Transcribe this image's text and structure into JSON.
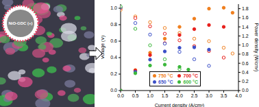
{
  "image": {
    "inset_label": "NiO-GDC (+)"
  },
  "chart_data": {
    "type": "scatter",
    "xlabel": "Current density (A/cm²)",
    "ylabel": "Voltage (V)",
    "y2label": "Power density (W/cm²)",
    "xlim": [
      0,
      4
    ],
    "xticks": [
      {
        "value": 0,
        "label": "0.0"
      },
      {
        "value": 0.5,
        "label": "0.5"
      },
      {
        "value": 1,
        "label": "1.0"
      },
      {
        "value": 1.5,
        "label": "1.5"
      },
      {
        "value": 2,
        "label": "2.0"
      },
      {
        "value": 2.5,
        "label": "2.5"
      },
      {
        "value": 3,
        "label": "3.0"
      },
      {
        "value": 3.5,
        "label": "3.5"
      },
      {
        "value": 4,
        "label": "4.0"
      }
    ],
    "ylim": [
      0,
      1.05
    ],
    "yticks": [
      {
        "value": 0,
        "label": "0.0"
      },
      {
        "value": 0.2,
        "label": "0.2"
      },
      {
        "value": 0.4,
        "label": "0.4"
      },
      {
        "value": 0.6,
        "label": "0.6"
      },
      {
        "value": 0.8,
        "label": "0.8"
      },
      {
        "value": 1,
        "label": "1.0"
      }
    ],
    "y2lim": [
      0,
      1.9
    ],
    "y2ticks": [
      {
        "value": 0,
        "label": "0.0"
      },
      {
        "value": 0.2,
        "label": "0.2"
      },
      {
        "value": 0.4,
        "label": "0.4"
      },
      {
        "value": 0.6,
        "label": "0.6"
      },
      {
        "value": 0.8,
        "label": "0.8"
      },
      {
        "value": 1,
        "label": "1.0"
      },
      {
        "value": 1.2,
        "label": "1.2"
      },
      {
        "value": 1.4,
        "label": "1.4"
      },
      {
        "value": 1.6,
        "label": "1.6"
      },
      {
        "value": 1.8,
        "label": "1.8"
      }
    ],
    "legend": "bottom",
    "grid": false,
    "series": [
      {
        "name": "750 °C",
        "color": "#f07f1e",
        "marker": "open",
        "x": [
          0,
          0.5,
          1,
          1.5,
          2,
          2.5,
          3,
          3.5,
          3.8
        ],
        "values": [
          0.98,
          0.9,
          0.83,
          0.76,
          0.7,
          0.63,
          0.6,
          0.52,
          0.45
        ]
      },
      {
        "name": "750 °C",
        "color": "#f07f1e",
        "marker": "filled",
        "axis": "y2",
        "x": [
          0,
          0.5,
          1,
          1.5,
          2,
          2.5,
          3,
          3.5,
          3.8
        ],
        "values": [
          0,
          0.45,
          0.83,
          1.14,
          1.4,
          1.58,
          1.8,
          1.82,
          1.71
        ]
      },
      {
        "name": "700 °C",
        "color": "#e8201c",
        "marker": "open",
        "x": [
          0,
          0.5,
          1,
          1.5,
          2,
          2.5,
          3,
          3.5
        ],
        "values": [
          1.0,
          0.88,
          0.78,
          0.69,
          0.61,
          0.54,
          0.48,
          0.4
        ]
      },
      {
        "name": "700 °C",
        "color": "#e8201c",
        "marker": "filled",
        "axis": "y2",
        "x": [
          0,
          0.5,
          1,
          1.5,
          2,
          2.5,
          3,
          3.5
        ],
        "values": [
          0,
          0.44,
          0.78,
          1.04,
          1.22,
          1.35,
          1.44,
          1.4
        ]
      },
      {
        "name": "650 °C",
        "color": "#3c50c8",
        "marker": "open",
        "x": [
          0,
          0.5,
          1,
          1.5,
          2,
          2.5,
          3
        ],
        "values": [
          1.01,
          0.82,
          0.68,
          0.57,
          0.47,
          0.38,
          0.3
        ]
      },
      {
        "name": "650 °C",
        "color": "#3c50c8",
        "marker": "filled",
        "axis": "y2",
        "x": [
          0,
          0.5,
          1,
          1.5,
          2,
          2.5,
          3
        ],
        "values": [
          0,
          0.41,
          0.68,
          0.86,
          0.94,
          0.95,
          0.9
        ]
      },
      {
        "name": "600 °C",
        "color": "#3cb83c",
        "marker": "open",
        "x": [
          0,
          0.5,
          1,
          1.5,
          2,
          2.3
        ],
        "values": [
          1.02,
          0.75,
          0.55,
          0.38,
          0.26,
          0.2
        ]
      },
      {
        "name": "600 °C",
        "color": "#3cb83c",
        "marker": "filled",
        "axis": "y2",
        "x": [
          0,
          0.5,
          1,
          1.5,
          2,
          2.3
        ],
        "values": [
          0,
          0.38,
          0.55,
          0.57,
          0.52,
          0.46
        ]
      }
    ]
  }
}
